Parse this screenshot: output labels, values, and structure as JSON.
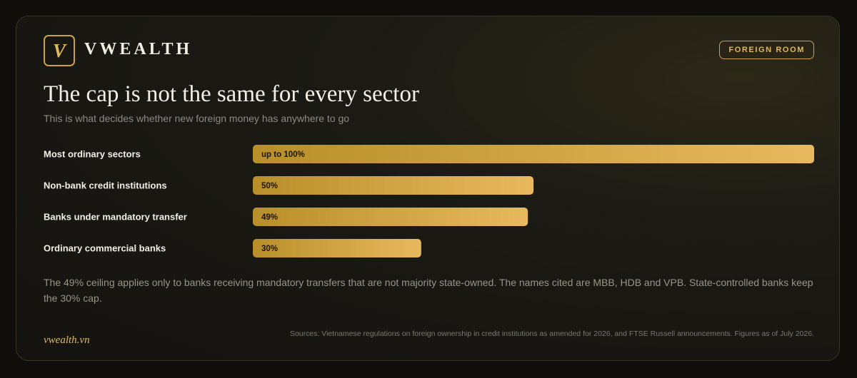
{
  "brand": {
    "logo_letter": "V",
    "name": "VWEALTH",
    "badge": "FOREIGN ROOM",
    "footer_link": "vwealth.vn"
  },
  "header": {
    "title": "The cap is not the same for every sector",
    "subtitle": "This is what decides whether new foreign money has anywhere to go"
  },
  "chart_data": {
    "type": "bar",
    "orientation": "horizontal",
    "categories": [
      "Most ordinary sectors",
      "Non-bank credit institutions",
      "Banks under mandatory transfer",
      "Ordinary commercial banks"
    ],
    "values": [
      100,
      50,
      49,
      30
    ],
    "labels": [
      "up to 100%",
      "50%",
      "49%",
      "30%"
    ],
    "xlim": [
      0,
      100
    ],
    "unit": "%",
    "grid": false,
    "colors": {
      "bar_start": "#b88f2a",
      "bar_end": "#e8b95e"
    }
  },
  "note": "The 49% ceiling applies only to banks receiving mandatory transfers that are not majority state-owned. The names cited are MBB, HDB and VPB. State-controlled banks keep the 30% cap.",
  "sources": "Sources: Vietnamese regulations on foreign ownership in credit institutions as amended for 2026, and FTSE Russell announcements. Figures as of July 2026."
}
